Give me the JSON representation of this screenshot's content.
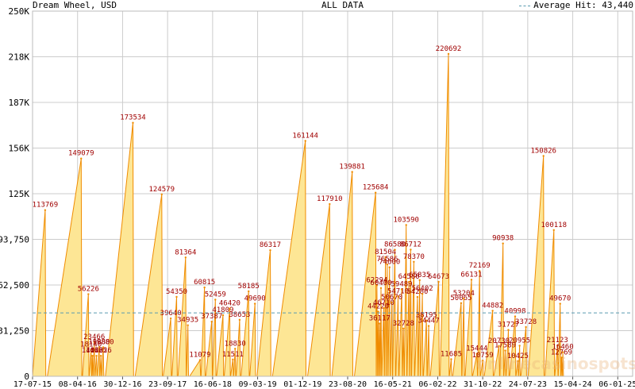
{
  "header": {
    "left": "Dream Wheel, USD",
    "center": "ALL DATA",
    "right": "Average Hit: 43,440"
  },
  "watermark": "onlinecasinospots.be",
  "chart_data": {
    "type": "area",
    "title": "Dream Wheel, USD",
    "subtitle": "ALL DATA",
    "xlabel": "",
    "ylabel": "",
    "ylim": [
      0,
      250000
    ],
    "y_ticks": [
      {
        "value": 0,
        "label": "0"
      },
      {
        "value": 31250,
        "label": "31,250"
      },
      {
        "value": 62500,
        "label": "62,500"
      },
      {
        "value": 93750,
        "label": "93,750"
      },
      {
        "value": 125000,
        "label": "125K"
      },
      {
        "value": 156250,
        "label": "156K"
      },
      {
        "value": 187500,
        "label": "187K"
      },
      {
        "value": 218750,
        "label": "218K"
      },
      {
        "value": 250000,
        "label": "250K"
      }
    ],
    "x_ticks": [
      "17-07-15",
      "08-04-16",
      "30-12-16",
      "23-09-17",
      "16-06-18",
      "09-03-19",
      "01-12-19",
      "23-08-20",
      "16-05-21",
      "06-02-22",
      "31-10-22",
      "24-07-23",
      "15-04-24",
      "06-01-25"
    ],
    "average_line": {
      "value": 43440,
      "label": "Average Hit: 43,440",
      "color": "#5a9bb0"
    },
    "grid": true,
    "colors": {
      "fill": "#fde695",
      "line": "#f08c00",
      "label": "#a00000",
      "axis": "#555555",
      "grid": "#cccccc"
    },
    "series": [
      {
        "points": [
          {
            "x": 0.28,
            "y": 113769
          },
          {
            "x": 1.08,
            "y": 149079
          },
          {
            "x": 1.24,
            "y": 56226
          },
          {
            "x": 1.3,
            "y": 18140
          },
          {
            "x": 1.33,
            "y": 14028
          },
          {
            "x": 1.37,
            "y": 23466
          },
          {
            "x": 1.42,
            "y": 14025
          },
          {
            "x": 1.48,
            "y": 19880
          },
          {
            "x": 1.52,
            "y": 14026
          },
          {
            "x": 1.57,
            "y": 19880
          },
          {
            "x": 2.23,
            "y": 173534
          },
          {
            "x": 2.87,
            "y": 124579
          },
          {
            "x": 3.07,
            "y": 39640
          },
          {
            "x": 3.2,
            "y": 54350
          },
          {
            "x": 3.4,
            "y": 81364
          },
          {
            "x": 3.45,
            "y": 34935
          },
          {
            "x": 3.72,
            "y": 11079
          },
          {
            "x": 3.82,
            "y": 60815
          },
          {
            "x": 3.98,
            "y": 37387
          },
          {
            "x": 4.06,
            "y": 52459
          },
          {
            "x": 4.23,
            "y": 41809
          },
          {
            "x": 4.38,
            "y": 46420
          },
          {
            "x": 4.45,
            "y": 11511
          },
          {
            "x": 4.5,
            "y": 18830
          },
          {
            "x": 4.6,
            "y": 38653
          },
          {
            "x": 4.8,
            "y": 58185
          },
          {
            "x": 4.94,
            "y": 49690
          },
          {
            "x": 5.28,
            "y": 86317
          },
          {
            "x": 6.06,
            "y": 161144
          },
          {
            "x": 6.6,
            "y": 117910
          },
          {
            "x": 7.1,
            "y": 139881
          },
          {
            "x": 7.62,
            "y": 125684
          },
          {
            "x": 7.65,
            "y": 62294
          },
          {
            "x": 7.68,
            "y": 44220
          },
          {
            "x": 7.71,
            "y": 36117
          },
          {
            "x": 7.74,
            "y": 60400
          },
          {
            "x": 7.8,
            "y": 46710
          },
          {
            "x": 7.84,
            "y": 81504
          },
          {
            "x": 7.88,
            "y": 76586
          },
          {
            "x": 7.93,
            "y": 74600
          },
          {
            "x": 7.98,
            "y": 50670
          },
          {
            "x": 8.05,
            "y": 86580
          },
          {
            "x": 8.12,
            "y": 54710
          },
          {
            "x": 8.2,
            "y": 59489
          },
          {
            "x": 8.24,
            "y": 32728
          },
          {
            "x": 8.3,
            "y": 103590
          },
          {
            "x": 8.36,
            "y": 64580
          },
          {
            "x": 8.4,
            "y": 86712
          },
          {
            "x": 8.47,
            "y": 78370
          },
          {
            "x": 8.55,
            "y": 54280
          },
          {
            "x": 8.6,
            "y": 65835
          },
          {
            "x": 8.66,
            "y": 56402
          },
          {
            "x": 8.75,
            "y": 38195
          },
          {
            "x": 8.8,
            "y": 34447
          },
          {
            "x": 9.02,
            "y": 64673
          },
          {
            "x": 9.24,
            "y": 220692
          },
          {
            "x": 9.3,
            "y": 11685
          },
          {
            "x": 9.52,
            "y": 50065
          },
          {
            "x": 9.58,
            "y": 53204
          },
          {
            "x": 9.75,
            "y": 66131
          },
          {
            "x": 9.87,
            "y": 15444
          },
          {
            "x": 9.93,
            "y": 72169
          },
          {
            "x": 10.0,
            "y": 10759
          },
          {
            "x": 10.22,
            "y": 44882
          },
          {
            "x": 10.36,
            "y": 20730
          },
          {
            "x": 10.45,
            "y": 90938
          },
          {
            "x": 10.5,
            "y": 17589
          },
          {
            "x": 10.57,
            "y": 31727
          },
          {
            "x": 10.72,
            "y": 40998
          },
          {
            "x": 10.78,
            "y": 10425
          },
          {
            "x": 10.82,
            "y": 20955
          },
          {
            "x": 10.96,
            "y": 33728
          },
          {
            "x": 11.35,
            "y": 150826
          },
          {
            "x": 11.58,
            "y": 100118
          },
          {
            "x": 11.66,
            "y": 21123
          },
          {
            "x": 11.72,
            "y": 49670
          },
          {
            "x": 11.75,
            "y": 12769
          },
          {
            "x": 11.78,
            "y": 16460
          }
        ]
      }
    ]
  }
}
